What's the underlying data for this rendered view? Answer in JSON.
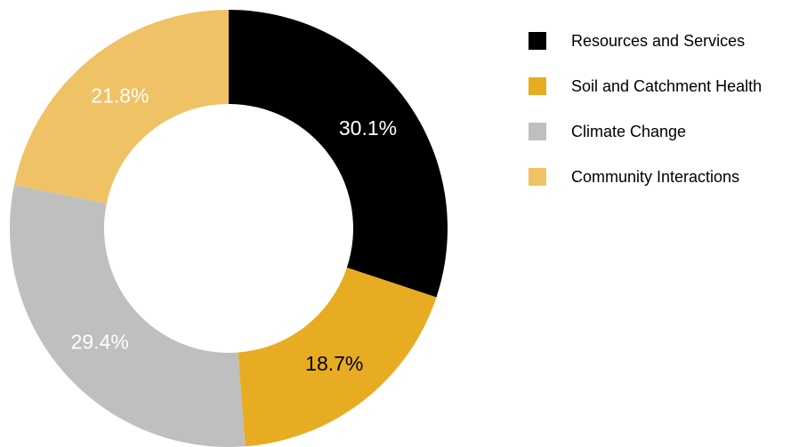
{
  "chart_data": {
    "type": "pie",
    "variant": "donut",
    "title": "",
    "legend_position": "right",
    "slices": [
      {
        "name": "Resources and Services",
        "value": 30.1,
        "label": "30.1%",
        "color": "#000000",
        "label_color": "#ffffff"
      },
      {
        "name": "Soil and Catchment Health",
        "value": 18.7,
        "label": "18.7%",
        "color": "#e8ac22",
        "label_color": "#000000"
      },
      {
        "name": "Climate Change",
        "value": 29.4,
        "label": "29.4%",
        "color": "#c0bfbf",
        "label_color": "#ffffff"
      },
      {
        "name": "Community Interactions",
        "value": 21.8,
        "label": "21.8%",
        "color": "#efc266",
        "label_color": "#ffffff"
      }
    ]
  }
}
